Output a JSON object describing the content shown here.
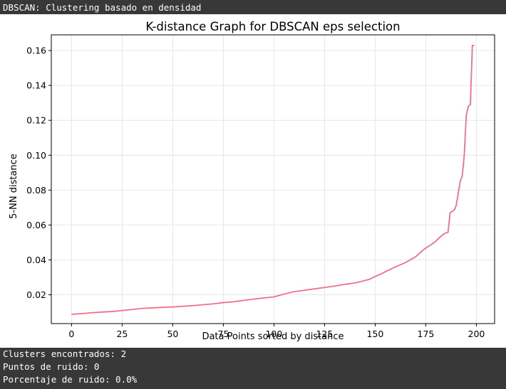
{
  "header": {
    "title": "DBSCAN: Clustering basado en densidad"
  },
  "output": {
    "lines": [
      "Clusters encontrados: 2",
      "Puntos de ruido: 0",
      "Porcentaje de ruido: 0.0%"
    ]
  },
  "chart_data": {
    "type": "line",
    "title": "K-distance Graph for DBSCAN eps selection",
    "xlabel": "Data Points sorted by distance",
    "ylabel": "5-NN distance",
    "xlim": [
      -10,
      209
    ],
    "ylim": [
      0.0035,
      0.169
    ],
    "xticks": [
      0,
      25,
      50,
      75,
      100,
      125,
      150,
      175,
      200
    ],
    "yticks": [
      0.02,
      0.04,
      0.06,
      0.08,
      0.1,
      0.12,
      0.14,
      0.16
    ],
    "ytick_labels": [
      "0.02",
      "0.04",
      "0.06",
      "0.08",
      "0.10",
      "0.12",
      "0.14",
      "0.16"
    ],
    "grid": true,
    "line_color": "#f07089",
    "series": [
      {
        "x": [
          0,
          5,
          10,
          15,
          20,
          25,
          30,
          35,
          40,
          45,
          50,
          55,
          60,
          65,
          70,
          75,
          80,
          85,
          90,
          95,
          100,
          103,
          106,
          110,
          115,
          120,
          125,
          130,
          135,
          140,
          143,
          147,
          150,
          153,
          156,
          160,
          165,
          170,
          173,
          175,
          178,
          180,
          182,
          184,
          185,
          186,
          187,
          188,
          189,
          190,
          191,
          192,
          193,
          194,
          195,
          196,
          197,
          198,
          199
        ],
        "y": [
          0.0088,
          0.0092,
          0.0097,
          0.0101,
          0.0104,
          0.011,
          0.0116,
          0.0122,
          0.0125,
          0.0128,
          0.013,
          0.0134,
          0.0138,
          0.0143,
          0.0148,
          0.0155,
          0.016,
          0.0168,
          0.0175,
          0.0182,
          0.0188,
          0.0198,
          0.0207,
          0.0218,
          0.0226,
          0.0234,
          0.0242,
          0.025,
          0.026,
          0.0268,
          0.0276,
          0.0288,
          0.0305,
          0.032,
          0.0338,
          0.036,
          0.0385,
          0.0418,
          0.045,
          0.0468,
          0.049,
          0.0508,
          0.053,
          0.055,
          0.0555,
          0.0558,
          0.067,
          0.0678,
          0.0685,
          0.071,
          0.078,
          0.085,
          0.088,
          0.1,
          0.123,
          0.128,
          0.129,
          0.163,
          0.163
        ]
      }
    ]
  }
}
